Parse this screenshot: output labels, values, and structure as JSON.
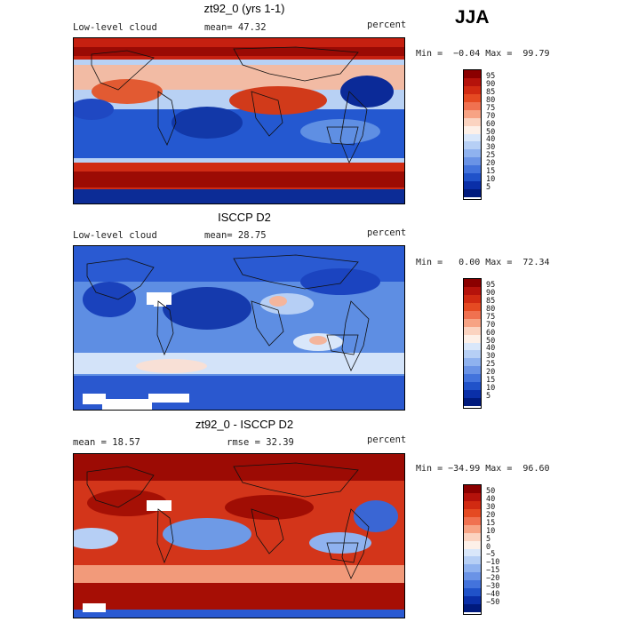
{
  "season": "JJA",
  "panels": [
    {
      "title": "zt92_0 (yrs 1-1)",
      "left_label": "Low-level cloud",
      "center_label": "mean=  47.32",
      "right_label": "percent",
      "minmax": "Min =  −0.04 Max =  99.79",
      "colorbar": {
        "labels": [
          "95",
          "90",
          "85",
          "80",
          "75",
          "70",
          "60",
          "50",
          "40",
          "30",
          "25",
          "20",
          "15",
          "10",
          "5"
        ],
        "colors": [
          "#8b0000",
          "#b5120b",
          "#d12a12",
          "#e54a22",
          "#f07150",
          "#f7a384",
          "#fbd3c0",
          "#fdf0e8",
          "#d9e7fa",
          "#b6cff5",
          "#8fb2ef",
          "#6a93e6",
          "#4373dc",
          "#2052c9",
          "#0a2fa8",
          "#001a7d"
        ]
      }
    },
    {
      "title": "ISCCP D2",
      "left_label": "Low-level cloud",
      "center_label": "mean=  28.75",
      "right_label": "percent",
      "minmax": "Min =   0.00 Max =  72.34",
      "colorbar": {
        "labels": [
          "95",
          "90",
          "85",
          "80",
          "75",
          "70",
          "60",
          "50",
          "40",
          "30",
          "25",
          "20",
          "15",
          "10",
          "5"
        ],
        "colors": [
          "#8b0000",
          "#b5120b",
          "#d12a12",
          "#e54a22",
          "#f07150",
          "#f7a384",
          "#fbd3c0",
          "#fdf0e8",
          "#d9e7fa",
          "#b6cff5",
          "#8fb2ef",
          "#6a93e6",
          "#4373dc",
          "#2052c9",
          "#0a2fa8",
          "#001a7d"
        ]
      }
    },
    {
      "title": "zt92_0 - ISCCP D2",
      "left_label": "mean =   18.57",
      "center_label": "rmse =   32.39",
      "right_label": "percent",
      "minmax": "Min = −34.99 Max =  96.60",
      "colorbar": {
        "labels": [
          "50",
          "40",
          "30",
          "20",
          "15",
          "10",
          "5",
          "0",
          "−5",
          "−10",
          "−15",
          "−20",
          "−30",
          "−40",
          "−50"
        ],
        "colors": [
          "#8b0000",
          "#b5120b",
          "#d12a12",
          "#e54a22",
          "#f07150",
          "#f7a384",
          "#fbd3c0",
          "#fdf0e8",
          "#d9e7fa",
          "#b6cff5",
          "#8fb2ef",
          "#6a93e6",
          "#4373dc",
          "#2052c9",
          "#0a2fa8",
          "#001a7d"
        ]
      }
    }
  ]
}
